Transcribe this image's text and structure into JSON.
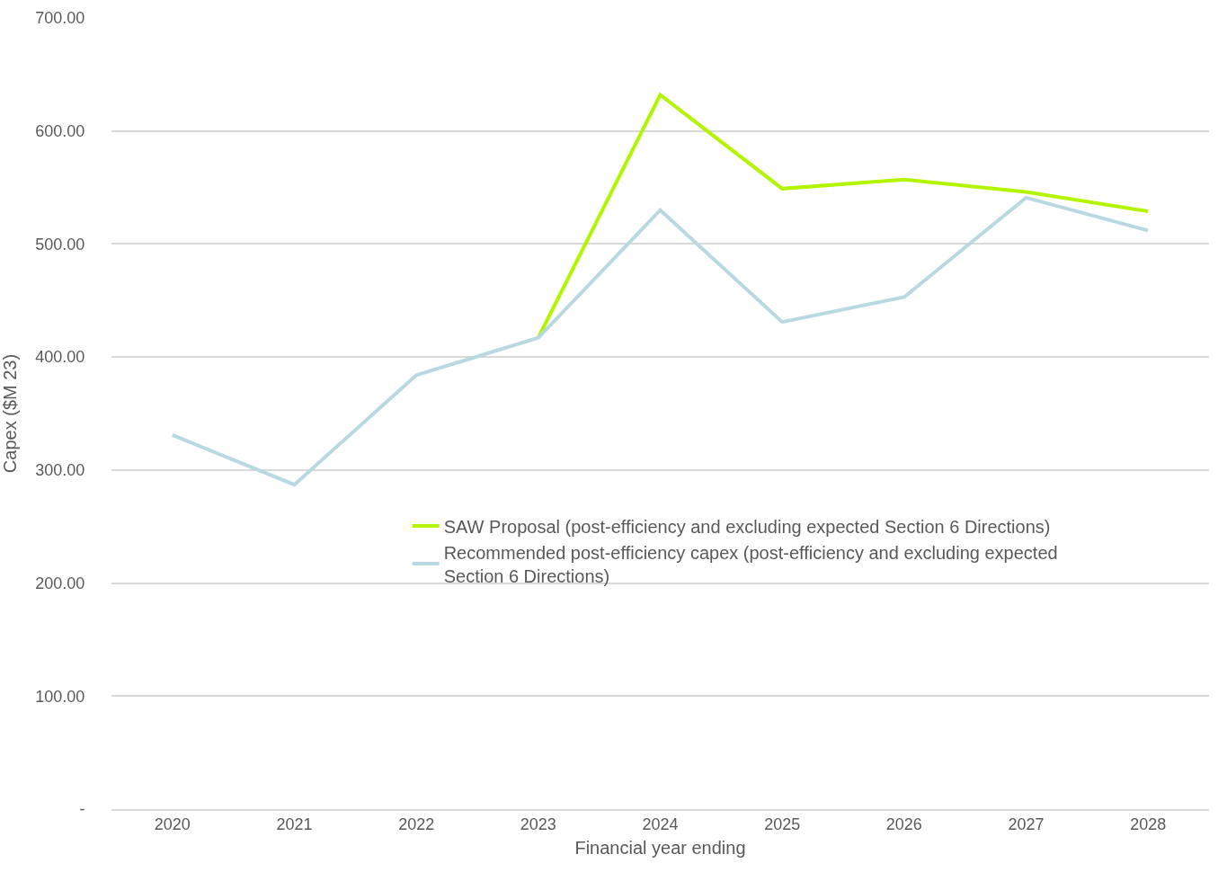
{
  "chart_data": {
    "type": "line",
    "xlabel": "Financial year ending",
    "ylabel": "Capex ($M 23)",
    "categories": [
      "2020",
      "2021",
      "2022",
      "2023",
      "2024",
      "2025",
      "2026",
      "2027",
      "2028"
    ],
    "series": [
      {
        "name": "SAW Proposal (post-efficiency and excluding expected Section 6 Directions)",
        "color": "#b3f500",
        "values": [
          null,
          null,
          null,
          417,
          632,
          549,
          557,
          546,
          529
        ]
      },
      {
        "name": "Recommended post-efficiency capex (post-efficiency and excluding expected Section 6 Directions)",
        "color": "#b9d9e2",
        "values": [
          331,
          287,
          384,
          417,
          530,
          431,
          453,
          541,
          512
        ]
      }
    ],
    "ylim": [
      0,
      700
    ],
    "yticks": [
      {
        "value": 0,
        "label": "-"
      },
      {
        "value": 100,
        "label": "100.00"
      },
      {
        "value": 200,
        "label": "200.00"
      },
      {
        "value": 300,
        "label": "300.00"
      },
      {
        "value": 400,
        "label": "400.00"
      },
      {
        "value": 500,
        "label": "500.00"
      },
      {
        "value": 600,
        "label": "600.00"
      },
      {
        "value": 700,
        "label": "700.00"
      }
    ],
    "grid": "y",
    "legend": "bottom right",
    "marker": "none",
    "line_style": "solid"
  }
}
